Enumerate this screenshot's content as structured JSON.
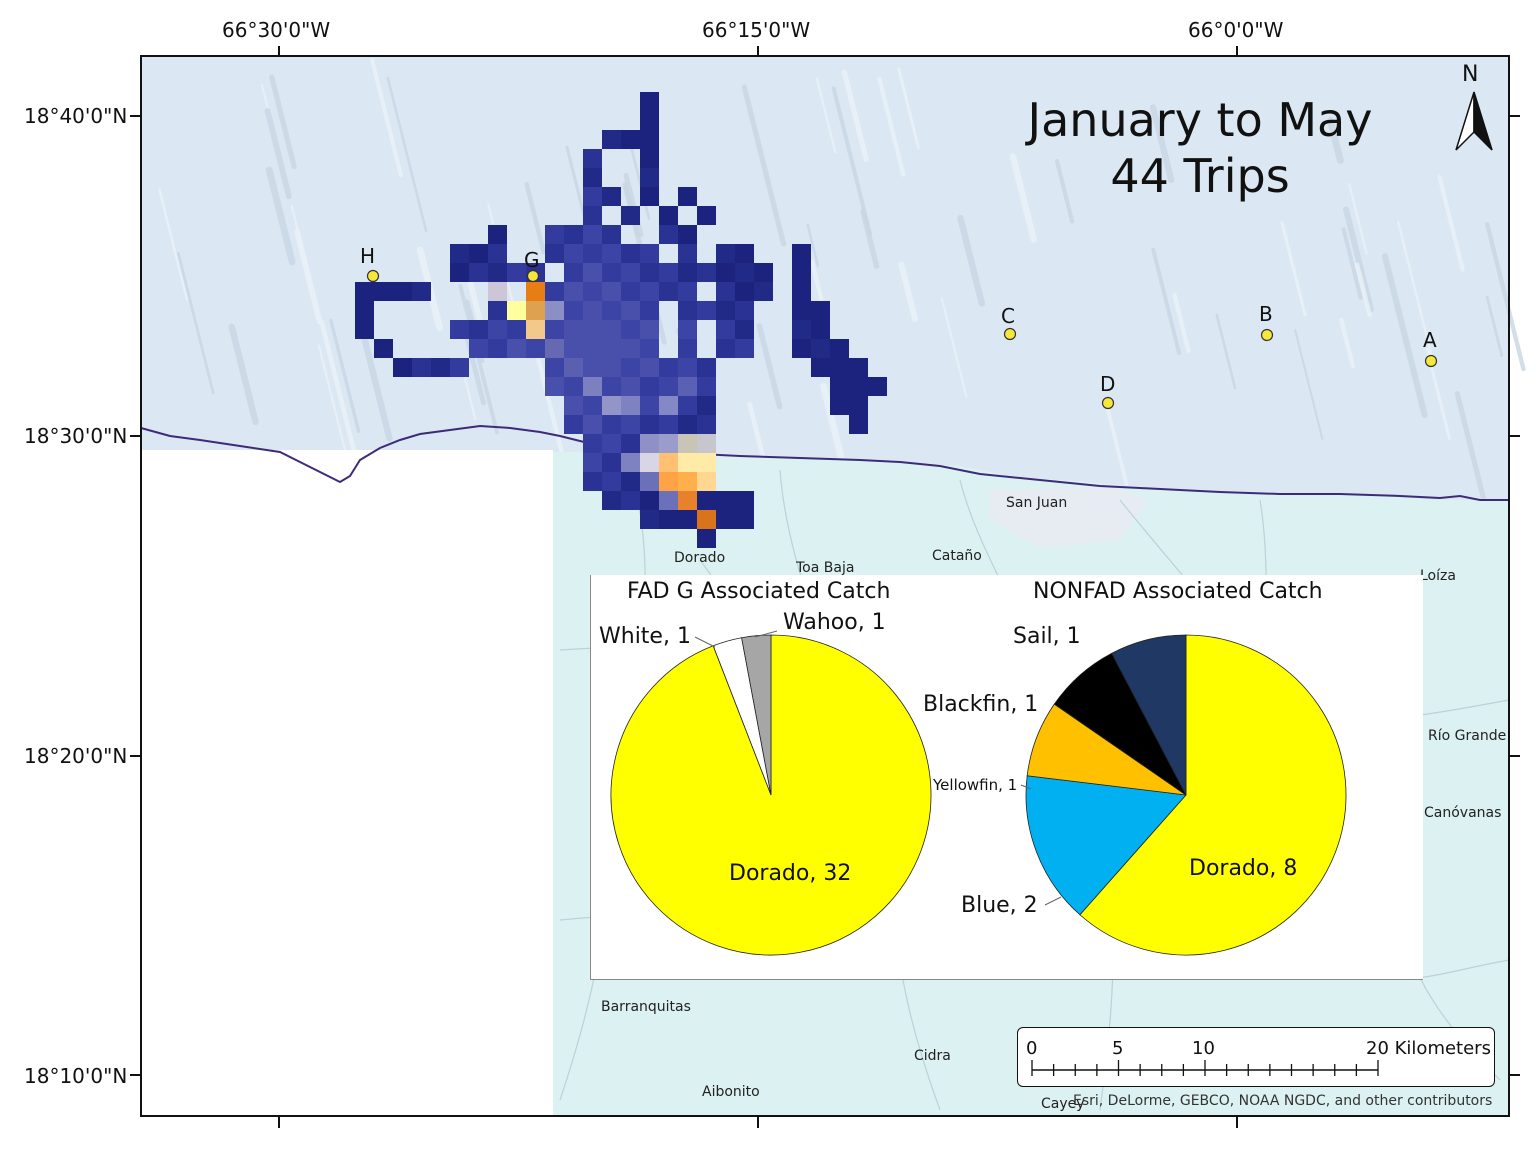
{
  "map": {
    "title_line1": "January to May",
    "title_line2": "44 Trips",
    "north": "N",
    "lon_labels": [
      "66°30'0\"W",
      "66°15'0\"W",
      "66°0'0\"W"
    ],
    "lat_labels": [
      "18°40'0\"N",
      "18°30'0\"N",
      "18°20'0\"N",
      "18°10'0\"N"
    ],
    "fad_points": [
      "H",
      "G",
      "C",
      "B",
      "A",
      "D"
    ],
    "place_names": [
      "San Juan",
      "Dorado",
      "Toa Baja",
      "Cataño",
      "Loíza",
      "Río Grande",
      "Canóvanas",
      "Barranquitas",
      "Cidra",
      "Aibonito",
      "Cayey"
    ],
    "scale": {
      "ticks": [
        "0",
        "5",
        "10",
        "20 Kilometers"
      ]
    },
    "credit": "Esri, DeLorme, GEBCO, NOAA NGDC, and other contributors",
    "colors": {
      "ocean": "#dbe7f3",
      "land": "#dcf1f2",
      "coast": "#3f2a7a",
      "effort_low": "#1b237f",
      "effort_high": "#ffff00",
      "fad_marker": "#f5e83a"
    }
  },
  "chart_data": [
    {
      "type": "pie",
      "title": "FAD G Associated Catch",
      "categories": [
        "Dorado",
        "White",
        "Wahoo"
      ],
      "values": [
        32,
        1,
        1
      ],
      "labels": [
        "Dorado, 32",
        "White, 1",
        "Wahoo, 1"
      ],
      "colors": [
        "#ffff00",
        "#ffffff",
        "#a6a6a6"
      ]
    },
    {
      "type": "pie",
      "title": "NONFAD Associated Catch",
      "categories": [
        "Dorado",
        "Blue",
        "Yellowfin",
        "Blackfin",
        "Sail"
      ],
      "values": [
        8,
        2,
        1,
        1,
        1
      ],
      "labels": [
        "Dorado, 8",
        "Blue, 2",
        "Yellowfin, 1",
        "Blackfin, 1",
        "Sail, 1"
      ],
      "colors": [
        "#ffff00",
        "#00b0f0",
        "#ffc000",
        "#000000",
        "#1f3864"
      ]
    }
  ]
}
